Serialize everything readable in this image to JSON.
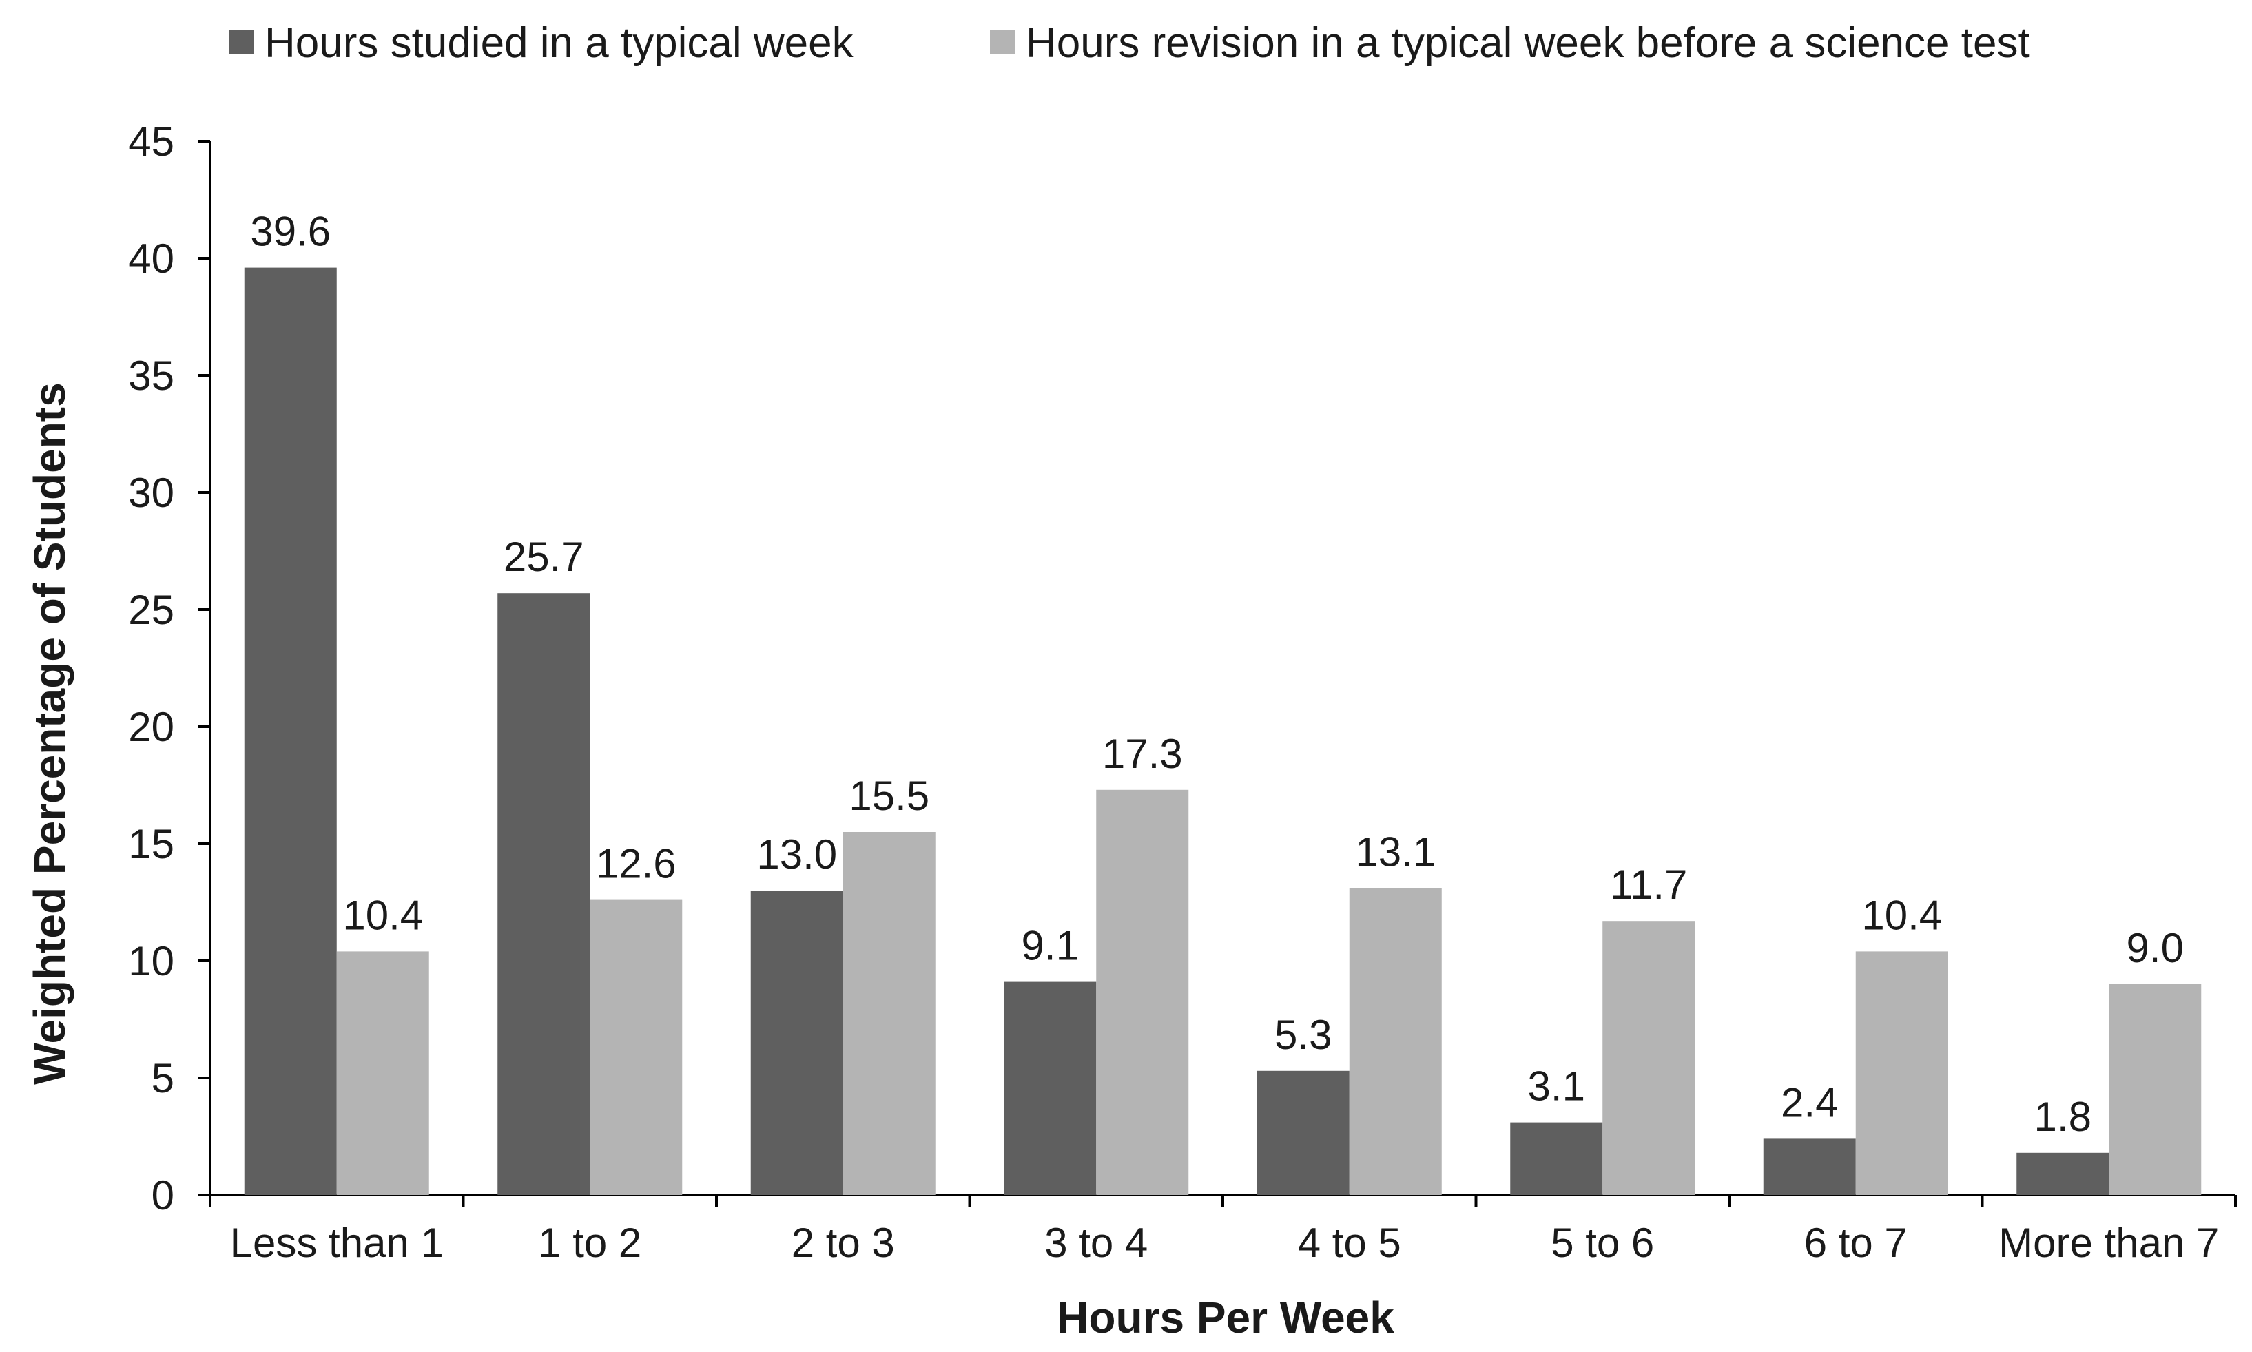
{
  "chart_data": {
    "type": "bar",
    "title": "",
    "xlabel": "Hours Per Week",
    "ylabel": "Weighted Percentage of Students",
    "ylim": [
      0,
      45
    ],
    "yticks": [
      0,
      5,
      10,
      15,
      20,
      25,
      30,
      35,
      40,
      45
    ],
    "grid": false,
    "legend_position": "top",
    "categories": [
      "Less than 1",
      "1 to 2",
      "2 to 3",
      "3 to 4",
      "4 to 5",
      "5 to 6",
      "6 to 7",
      "More than 7"
    ],
    "series": [
      {
        "name": "Hours studied in a typical week",
        "color": "#5f5f5f",
        "values": [
          39.6,
          25.7,
          13.0,
          9.1,
          5.3,
          3.1,
          2.4,
          1.8
        ],
        "labels": [
          "39.6",
          "25.7",
          "13.0",
          "9.1",
          "5.3",
          "3.1",
          "2.4",
          "1.8"
        ]
      },
      {
        "name": "Hours revision in a typical week before a science test",
        "color": "#b4b4b4",
        "values": [
          10.4,
          12.6,
          15.5,
          17.3,
          13.1,
          11.7,
          10.4,
          9.0
        ],
        "labels": [
          "10.4",
          "12.6",
          "15.5",
          "17.3",
          "13.1",
          "11.7",
          "10.4",
          "9.0"
        ]
      }
    ]
  }
}
